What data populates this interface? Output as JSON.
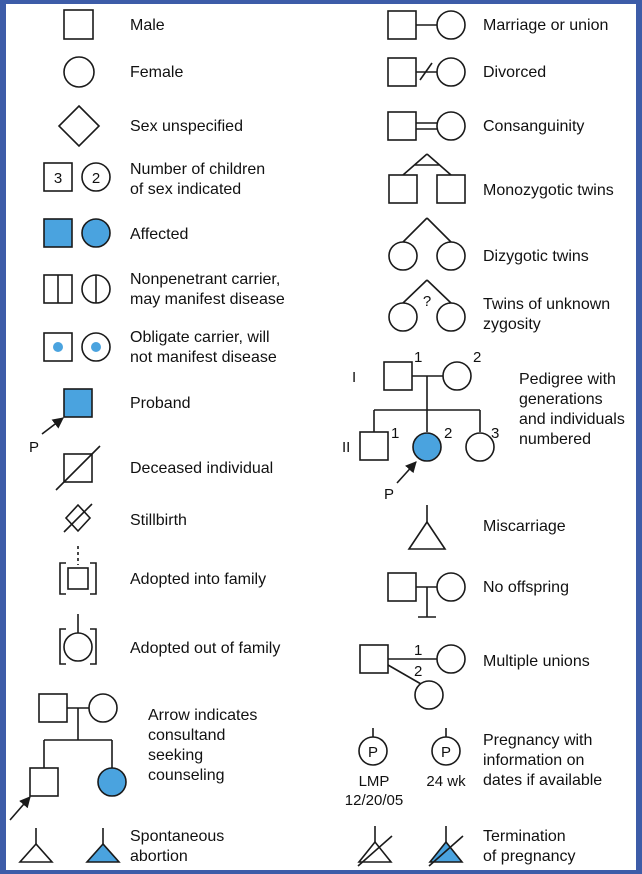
{
  "colors": {
    "frame": "#3d5ca8",
    "panel": "#ffffff",
    "affected": "#4aa3df",
    "stroke": "#1a1a1a"
  },
  "legend": {
    "male": "Male",
    "female": "Female",
    "sex_unspecified": "Sex unspecified",
    "num_children": {
      "line1": "Number of children",
      "line2": "of sex indicated",
      "male_count": "3",
      "female_count": "2"
    },
    "affected": "Affected",
    "nonpenetrant": {
      "line1": "Nonpenetrant carrier,",
      "line2": "may manifest disease"
    },
    "obligate": {
      "line1": "Obligate carrier, will",
      "line2": "not manifest disease"
    },
    "proband": {
      "label": "Proband",
      "marker": "P"
    },
    "deceased": "Deceased individual",
    "stillbirth": "Stillbirth",
    "adopted_into": "Adopted into family",
    "adopted_out": "Adopted out of family",
    "consultand": {
      "line1": "Arrow indicates",
      "line2": "consultand",
      "line3": "seeking",
      "line4": "counseling"
    },
    "spontaneous": {
      "line1": "Spontaneous",
      "line2": "abortion"
    },
    "marriage": "Marriage or union",
    "divorced": "Divorced",
    "consanguinity": "Consanguinity",
    "mz_twins": "Monozygotic twins",
    "dz_twins": "Dizygotic twins",
    "unknown_twins": {
      "line1": "Twins of unknown",
      "line2": "zygosity",
      "mark": "?"
    },
    "pedigree": {
      "line1": "Pedigree with",
      "line2": "generations",
      "line3": "and individuals",
      "line4": "numbered",
      "gen1": "I",
      "gen2": "II",
      "n1": "1",
      "n2": "2",
      "c1": "1",
      "c2": "2",
      "c3": "3",
      "marker": "P"
    },
    "miscarriage": "Miscarriage",
    "no_offspring": "No offspring",
    "multiple_unions": {
      "label": "Multiple unions",
      "n1": "1",
      "n2": "2"
    },
    "pregnancy": {
      "line1": "Pregnancy with",
      "line2": "information on",
      "line3": "dates if available",
      "symbol": "P",
      "lmp": "LMP",
      "date": "12/20/05",
      "weeks": "24 wk"
    },
    "termination": {
      "line1": "Termination",
      "line2": "of pregnancy"
    }
  }
}
